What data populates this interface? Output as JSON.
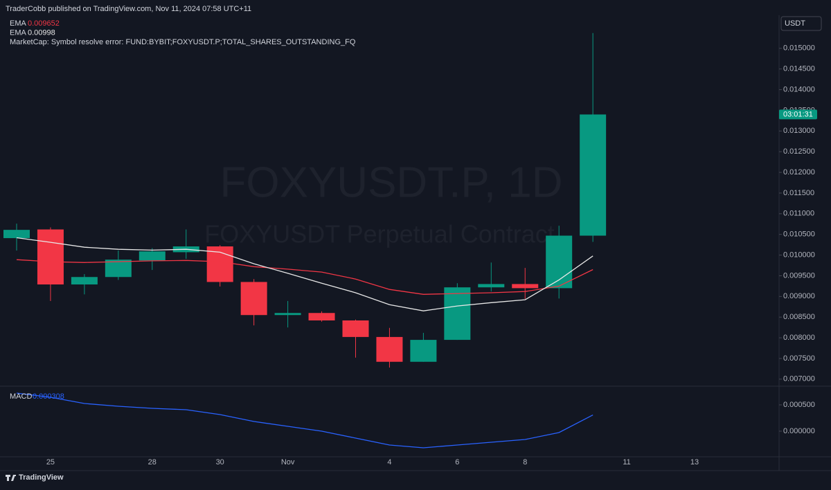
{
  "header": {
    "text": "TraderCobb published on TradingView.com, Nov 11, 2024 07:58 UTC+11",
    "currency": "USDT",
    "error": "MarketCap: Symbol resolve error: FUND:BYBIT;FOXYUSDT.P;TOTAL_SHARES_OUTSTANDING_FQ"
  },
  "watermark": {
    "symbol": "FOXYUSDT.P, 1D",
    "description": "FOXYUSDT Perpetual Contract"
  },
  "footer": {
    "brand": "TradingView"
  },
  "chart_data": [
    {
      "type": "candlestick",
      "categories": [
        null,
        "25",
        null,
        null,
        "28",
        null,
        "30",
        null,
        "Nov",
        null,
        null,
        "4",
        null,
        "6",
        null,
        "8",
        null,
        null,
        "11",
        null,
        "13"
      ],
      "open": [
        0.01041,
        0.01062,
        0.00929,
        0.00947,
        0.00987,
        0.01007,
        0.01021,
        0.00935,
        0.00855,
        0.0086,
        0.00842,
        0.00802,
        0.00742,
        0.00795,
        0.00922,
        0.0093,
        0.0092,
        0.01047,
        null,
        null,
        null
      ],
      "high": [
        0.01076,
        0.01067,
        0.00954,
        0.01011,
        0.01017,
        0.01062,
        0.01024,
        0.00942,
        0.00889,
        0.00864,
        0.00844,
        0.00824,
        0.00812,
        0.00932,
        0.00982,
        0.00969,
        0.01071,
        0.01537,
        null,
        null,
        null
      ],
      "low": [
        0.01011,
        0.00889,
        0.00905,
        0.0094,
        0.00964,
        0.00991,
        0.00924,
        0.0083,
        0.00825,
        0.00839,
        0.00752,
        0.00728,
        0.00742,
        0.00795,
        0.00912,
        0.00894,
        0.00895,
        0.01032,
        null,
        null,
        null
      ],
      "close": [
        0.01061,
        0.00929,
        0.00947,
        0.00989,
        0.01009,
        0.01021,
        0.00935,
        0.00855,
        0.0086,
        0.00842,
        0.00802,
        0.00742,
        0.00795,
        0.00922,
        0.0093,
        0.0092,
        0.01047,
        0.0134,
        null,
        null,
        null
      ],
      "up_color": "#089981",
      "down_color": "#f23645",
      "countdown": "03:01:31",
      "series": [
        {
          "name": "EMA",
          "color": "#f23645",
          "last": 0.009652,
          "values": [
            0.00989,
            0.00984,
            0.00982,
            0.00984,
            0.00986,
            0.00987,
            0.00984,
            0.00972,
            0.00966,
            0.00959,
            0.00942,
            0.00917,
            0.00905,
            0.00907,
            0.00909,
            0.00912,
            0.00925,
            0.00965,
            null,
            null,
            null
          ]
        },
        {
          "name": "EMA",
          "color": "#e8e8e8",
          "last": 0.00998,
          "values": [
            0.01042,
            0.01031,
            0.01019,
            0.01014,
            0.01012,
            0.01014,
            0.01007,
            0.00979,
            0.00956,
            0.00932,
            0.00909,
            0.0088,
            0.00865,
            0.00877,
            0.00885,
            0.00892,
            0.0094,
            0.00998,
            null,
            null,
            null
          ]
        }
      ],
      "ylim": [
        0.00683,
        0.0158
      ],
      "yticks": [
        {
          "value": 0.007,
          "label": "0.007000"
        },
        {
          "value": 0.0075,
          "label": "0.007500"
        },
        {
          "value": 0.008,
          "label": "0.008000"
        },
        {
          "value": 0.0085,
          "label": "0.008500"
        },
        {
          "value": 0.009,
          "label": "0.009000"
        },
        {
          "value": 0.0095,
          "label": "0.009500"
        },
        {
          "value": 0.01,
          "label": "0.010000"
        },
        {
          "value": 0.0105,
          "label": "0.010500"
        },
        {
          "value": 0.011,
          "label": "0.011000"
        },
        {
          "value": 0.0115,
          "label": "0.011500"
        },
        {
          "value": 0.012,
          "label": "0.012000"
        },
        {
          "value": 0.0125,
          "label": "0.012500"
        },
        {
          "value": 0.013,
          "label": "0.013000"
        },
        {
          "value": 0.0135,
          "label": "0.013500"
        },
        {
          "value": 0.014,
          "label": "0.014000"
        },
        {
          "value": 0.0145,
          "label": "0.014500"
        },
        {
          "value": 0.015,
          "label": "0.015000"
        }
      ]
    },
    {
      "type": "line",
      "series": [
        {
          "name": "MACD",
          "color": "#2962ff",
          "last": 0.000308,
          "values": [
            0.000724,
            0.000645,
            0.000526,
            0.000474,
            0.000434,
            0.000408,
            0.000316,
            0.000184,
            9.2e-05,
            0,
            -0.000132,
            -0.000263,
            -0.000316,
            -0.000263,
            -0.000211,
            -0.000158,
            -2.6e-05,
            0.000308,
            null,
            null,
            null
          ]
        }
      ],
      "ylim": [
        -0.000487,
        0.000855
      ],
      "yticks": [
        {
          "value": 0,
          "label": "0.000000"
        },
        {
          "value": 0.0005,
          "label": "0.000500"
        }
      ]
    }
  ]
}
